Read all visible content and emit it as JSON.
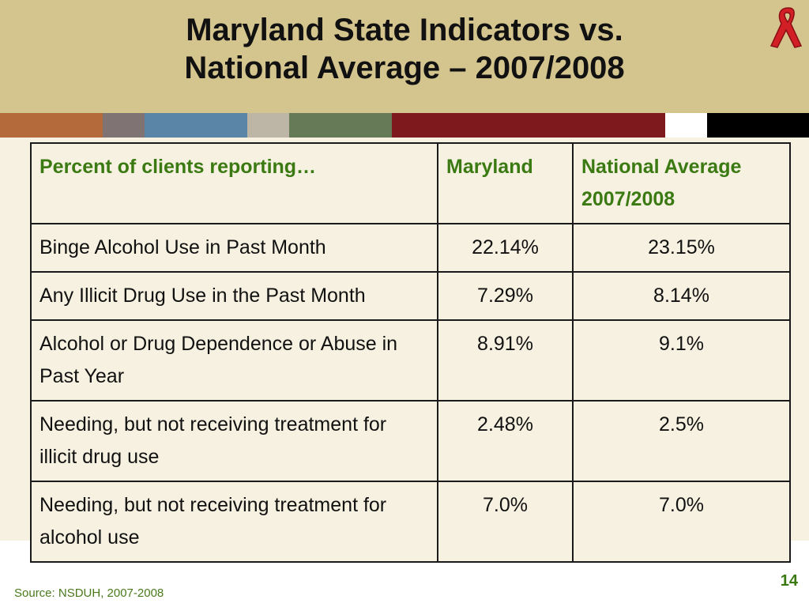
{
  "slide": {
    "title_line1": "Maryland State Indicators vs.",
    "title_line2": "National Average – 2007/2008",
    "source": "Source: NSDUH, 2007-2008",
    "page_number": "14"
  },
  "colors": {
    "title_band": "#d4c48e",
    "body_background": "#f6f1e0",
    "header_text": "#3b7a12",
    "stripes": [
      "#b46a3a",
      "#7f7373",
      "#5b85a6",
      "#bdb5a5",
      "#677a58",
      "#7e1a1e",
      "#ffffff",
      "#000000"
    ]
  },
  "icons": {
    "ribbon": "red-awareness-ribbon-icon"
  },
  "table": {
    "headers": [
      "Percent of clients reporting…",
      "Maryland",
      "National Average 2007/2008"
    ],
    "rows": [
      {
        "label": "Binge Alcohol Use in Past Month",
        "maryland": "22.14%",
        "national": "23.15%"
      },
      {
        "label": "Any Illicit Drug Use in the Past Month",
        "maryland": "7.29%",
        "national": "8.14%"
      },
      {
        "label": "Alcohol or Drug Dependence or Abuse in Past Year",
        "maryland": "8.91%",
        "national": "9.1%"
      },
      {
        "label": "Needing, but not receiving treatment for illicit drug use",
        "maryland": "2.48%",
        "national": "2.5%"
      },
      {
        "label": "Needing, but not receiving treatment for alcohol use",
        "maryland": "7.0%",
        "national": "7.0%"
      }
    ]
  }
}
